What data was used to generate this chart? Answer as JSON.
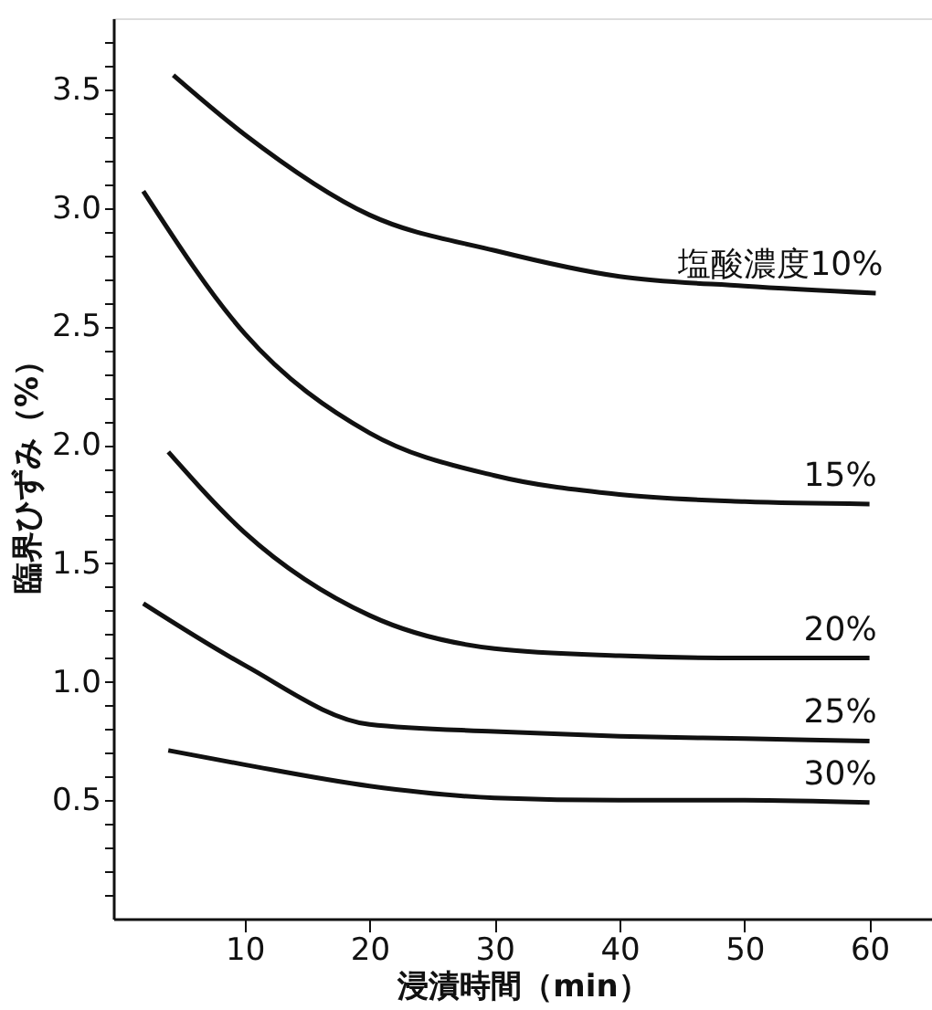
{
  "chart_data": {
    "type": "line",
    "xlabel": "浸漬時間（min）",
    "ylabel": "臨界ひずみ（%）",
    "xlim": [
      -0.5,
      65
    ],
    "ylim": [
      0,
      3.8
    ],
    "xticks": [
      10,
      20,
      30,
      40,
      50,
      60
    ],
    "yticks": [
      {
        "value": 0.1,
        "label": null
      },
      {
        "value": 0.2,
        "label": null
      },
      {
        "value": 0.3,
        "label": null
      },
      {
        "value": 0.4,
        "label": null
      },
      {
        "value": 0.5,
        "label": "0.5"
      },
      {
        "value": 0.6,
        "label": null
      },
      {
        "value": 0.7,
        "label": null
      },
      {
        "value": 0.8,
        "label": null
      },
      {
        "value": 0.9,
        "label": null
      },
      {
        "value": 1.0,
        "label": "1.0"
      },
      {
        "value": 1.1,
        "label": null
      },
      {
        "value": 1.2,
        "label": null
      },
      {
        "value": 1.3,
        "label": null
      },
      {
        "value": 1.4,
        "label": null
      },
      {
        "value": 1.5,
        "label": "1.5"
      },
      {
        "value": 1.6,
        "label": null
      },
      {
        "value": 1.7,
        "label": null
      },
      {
        "value": 1.8,
        "label": null
      },
      {
        "value": 1.9,
        "label": null
      },
      {
        "value": 2.0,
        "label": "2.0"
      },
      {
        "value": 2.1,
        "label": null
      },
      {
        "value": 2.2,
        "label": null
      },
      {
        "value": 2.3,
        "label": null
      },
      {
        "value": 2.4,
        "label": null
      },
      {
        "value": 2.5,
        "label": "2.5"
      },
      {
        "value": 2.6,
        "label": null
      },
      {
        "value": 2.7,
        "label": null
      },
      {
        "value": 2.8,
        "label": null
      },
      {
        "value": 2.9,
        "label": null
      },
      {
        "value": 3.0,
        "label": "3.0"
      },
      {
        "value": 3.1,
        "label": null
      },
      {
        "value": 3.2,
        "label": null
      },
      {
        "value": 3.3,
        "label": null
      },
      {
        "value": 3.4,
        "label": null
      },
      {
        "value": 3.5,
        "label": "3.5"
      },
      {
        "value": 3.6,
        "label": null
      },
      {
        "value": 3.7,
        "label": null
      }
    ],
    "grid": false,
    "marker": "none",
    "line_style": "solid",
    "series": [
      {
        "color": "#111111",
        "x": [
          4.3,
          10,
          20,
          30,
          40,
          50,
          60.5
        ],
        "values": [
          3.56,
          3.31,
          2.97,
          2.82,
          2.71,
          2.67,
          2.64
        ]
      },
      {
        "color": "#111111",
        "x": [
          1.9,
          10,
          20,
          30,
          40,
          50,
          60
        ],
        "values": [
          3.07,
          2.47,
          2.05,
          1.87,
          1.79,
          1.76,
          1.75
        ]
      },
      {
        "color": "#111111",
        "x": [
          3.9,
          10,
          20,
          30,
          40,
          50,
          60
        ],
        "values": [
          1.97,
          1.63,
          1.28,
          1.14,
          1.11,
          1.1,
          1.1
        ]
      },
      {
        "color": "#111111",
        "x": [
          1.9,
          10,
          20,
          30,
          40,
          50,
          60
        ],
        "values": [
          1.33,
          1.07,
          0.82,
          0.79,
          0.77,
          0.76,
          0.75
        ]
      },
      {
        "color": "#111111",
        "x": [
          3.9,
          10,
          20,
          30,
          40,
          50,
          60
        ],
        "values": [
          0.71,
          0.65,
          0.56,
          0.51,
          0.5,
          0.5,
          0.49
        ]
      }
    ],
    "annotations": [
      "塩酸濃度10%",
      "15%",
      "20%",
      "25%",
      "30%"
    ]
  }
}
